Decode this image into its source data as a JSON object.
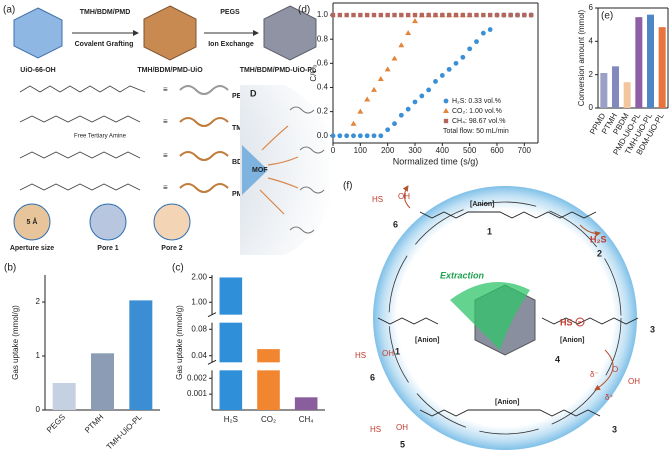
{
  "chart_data": [
    {
      "type": "bar",
      "label": "(b)",
      "ylabel": "Gas uptake (mmol/g)",
      "categories": [
        "PEGS",
        "PTMH",
        "TMH-UiO-PL"
      ],
      "values": [
        0.5,
        1.05,
        2.03
      ],
      "colors": [
        "#c5d0e3",
        "#8d9cb5",
        "#3b8ed4"
      ],
      "ylim": [
        0,
        2.5
      ],
      "yticks": [
        0,
        1,
        2
      ]
    },
    {
      "type": "bar",
      "label": "(c)",
      "ylabel": "Gas uptake (mmol/g)",
      "categories": [
        "H₂S",
        "CO₂",
        "CH₄"
      ],
      "values": [
        2.0,
        0.05,
        0.0008
      ],
      "colors": [
        "#2f8fd8",
        "#f2852f",
        "#8a5d9c"
      ],
      "ylim_segments": [
        [
          0,
          0.0025
        ],
        [
          0.03,
          0.09
        ],
        [
          0.5,
          2.1
        ]
      ],
      "yticks": [
        0.001,
        0.002,
        0.04,
        0.08,
        {
          "value": 1,
          "label": "1.00"
        },
        {
          "value": 2,
          "label": "2.00"
        }
      ]
    },
    {
      "type": "scatter",
      "label": "(d)",
      "ylabel": "C/C₀",
      "xlabel": "Normalized time (s/g)",
      "xlim": [
        0,
        750
      ],
      "ylim": [
        -0.06,
        1.1
      ],
      "xticks": [
        0,
        100,
        200,
        300,
        400,
        500,
        600,
        700
      ],
      "yticks": [
        {
          "value": 0,
          "label": "0.0"
        },
        {
          "value": 0.2,
          "label": "0.2"
        },
        {
          "value": 0.4,
          "label": "0.4"
        },
        {
          "value": 0.6,
          "label": "0.6"
        },
        {
          "value": 0.8,
          "label": "0.8"
        },
        {
          "value": 1,
          "label": "1.0"
        }
      ],
      "legend": "lower right",
      "annotation": "Total flow: 50 mL/min",
      "series": [
        {
          "name": "H₂S: 0.33 vol.%",
          "color": "#3a8fd6",
          "marker": "circle",
          "x": [
            0,
            25,
            50,
            75,
            100,
            125,
            150,
            175,
            200,
            225,
            250,
            275,
            300,
            325,
            350,
            375,
            400,
            425,
            450,
            475,
            500,
            525,
            550,
            575,
            600,
            625,
            650,
            675,
            700,
            725
          ],
          "values": [
            0,
            0,
            0,
            0,
            0,
            0,
            0,
            0,
            0.05,
            0.1,
            0.17,
            0.22,
            0.28,
            0.33,
            0.38,
            0.45,
            0.5,
            0.55,
            0.6,
            0.65,
            0.72,
            0.78,
            0.85,
            0.88,
            1,
            1,
            1,
            1,
            1,
            1
          ]
        },
        {
          "name": "CO₂: 1.00 vol.%",
          "color": "#e2843a",
          "marker": "triangle",
          "x": [
            75,
            100,
            125,
            150,
            175,
            200,
            225,
            250,
            275,
            300,
            325,
            350,
            375,
            400,
            425,
            450,
            475,
            500
          ],
          "values": [
            0.1,
            0.2,
            0.3,
            0.38,
            0.47,
            0.55,
            0.64,
            0.75,
            0.85,
            0.95,
            1,
            1,
            1,
            1,
            1,
            1,
            1,
            1
          ]
        },
        {
          "name": "CH₄: 98.67 vol.%",
          "color": "#b5655a",
          "marker": "square",
          "x": [
            0,
            25,
            50,
            75,
            100,
            125,
            150,
            175,
            200,
            225,
            250,
            275,
            300,
            325,
            350,
            375,
            400,
            425,
            450,
            475,
            500,
            525,
            550,
            575,
            600,
            625,
            650,
            675,
            700,
            725
          ],
          "values": [
            1,
            1,
            1,
            1,
            1,
            1,
            1,
            1,
            1,
            1,
            1,
            1,
            1,
            1,
            1,
            1,
            1,
            1,
            1,
            1,
            1,
            1,
            1,
            1,
            1,
            1,
            1,
            1,
            1,
            1
          ]
        }
      ]
    },
    {
      "type": "bar",
      "label": "(e)",
      "ylabel": "Conversion amount (mmol)",
      "categories": [
        "PPMD",
        "PTMH",
        "PBDM",
        "PMD-UiO-PL",
        "TMH-UiO-PL",
        "BDM-UiO-PL"
      ],
      "values": [
        2.1,
        2.5,
        1.55,
        5.45,
        5.6,
        4.85
      ],
      "colors": [
        "#9aa0c6",
        "#8189bd",
        "#f3c79e",
        "#8e5fa5",
        "#4f86c6",
        "#e8743b"
      ],
      "ylim": [
        0,
        6
      ],
      "yticks": [
        0,
        2,
        4,
        6
      ]
    }
  ],
  "panel_a": {
    "label": "(a)",
    "reagent": "TMH/BDM/PMD",
    "step1": "Covalent Grafting",
    "reagent2": "PEGS",
    "step2": "Ion Exchange",
    "materials": [
      "UiO-66-OH",
      "TMH/BDM/PMD-UiO",
      "TMH/BDM/PMD-UiO-PL"
    ],
    "ligands": [
      "PEGS",
      "TMH",
      "BDM",
      "PMD"
    ],
    "note": "Free Tertiary Amine",
    "inset_label": "D",
    "core": "MOF",
    "aperture": "5 Å",
    "pores": [
      "Aperture size",
      "Pore 1",
      "Pore 2"
    ]
  },
  "panel_f": {
    "label": "(f)",
    "gas": "H₂S",
    "process": "Extraction",
    "ion": "HS",
    "anions": [
      "[Anion]",
      "[Anion]",
      "[Anion]",
      "[Anion]"
    ],
    "numbers": [
      "1",
      "2",
      "1",
      "3",
      "4",
      "3",
      "5",
      "6",
      "6"
    ],
    "charges": [
      "δ⁻",
      "δ⁺"
    ],
    "molecule_labels": [
      "HS",
      "OH",
      "HS",
      "OH",
      "HS",
      "OH",
      "O",
      "OH"
    ]
  }
}
